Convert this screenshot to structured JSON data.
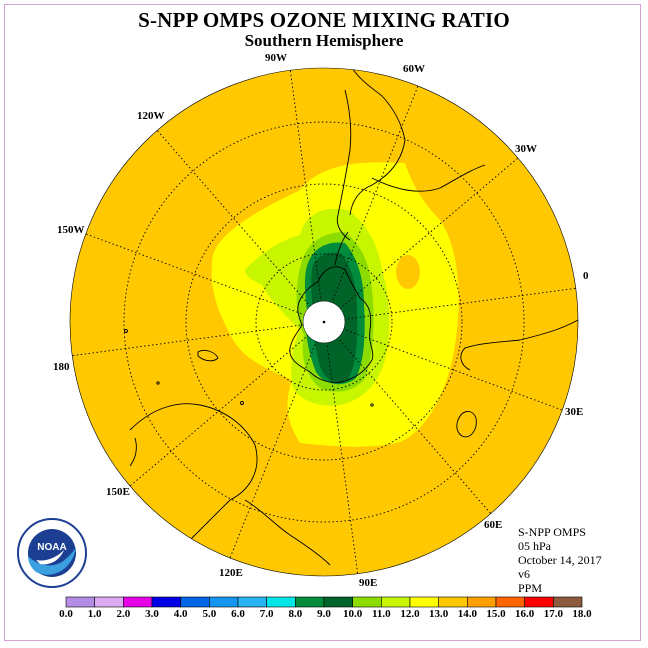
{
  "title": "S-NPP OMPS OZONE MIXING RATIO",
  "subtitle": "Southern Hemisphere",
  "info": {
    "satellite": "S-NPP OMPS",
    "level": "05 hPa",
    "date": "October 14, 2017",
    "version": "v6",
    "units": "PPM"
  },
  "longitude_labels": [
    "0",
    "30E",
    "60E",
    "90E",
    "120E",
    "150E",
    "180",
    "150W",
    "120W",
    "90W",
    "60W",
    "30W"
  ],
  "logo": {
    "text": "NOAA"
  },
  "colorbar": {
    "ticks": [
      "0.0",
      "1.0",
      "2.0",
      "3.0",
      "4.0",
      "5.0",
      "6.0",
      "7.0",
      "8.0",
      "9.0",
      "10.0",
      "11.0",
      "12.0",
      "13.0",
      "14.0",
      "15.0",
      "16.0",
      "17.0",
      "18.0"
    ],
    "colors": [
      "#b48ce6",
      "#dcaaf0",
      "#e600e6",
      "#0000e6",
      "#0064e6",
      "#1496f0",
      "#28b4f0",
      "#00e6e6",
      "#008c3c",
      "#006428",
      "#8cdc00",
      "#c8f500",
      "#ffff00",
      "#ffc800",
      "#ffa000",
      "#ff6400",
      "#ff0000",
      "#8c5a3c"
    ]
  },
  "colors": {
    "c13": "#ffc800",
    "c12": "#ffff00",
    "c11": "#c8f500",
    "c10": "#8cdc00",
    "c9": "#008c3c",
    "c8": "#006428"
  }
}
